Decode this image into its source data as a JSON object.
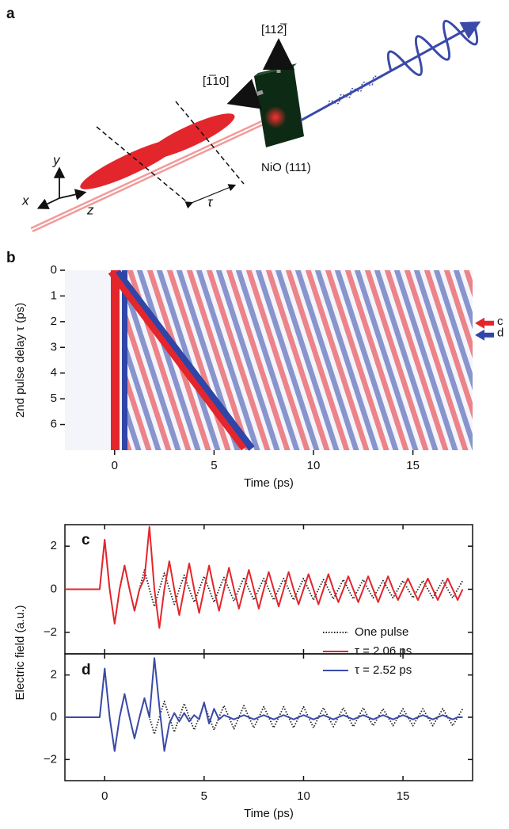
{
  "panel_labels": [
    "a",
    "b",
    "c",
    "d"
  ],
  "diagram": {
    "axis_x": "x",
    "axis_y": "y",
    "axis_z": "z",
    "delay": "τ",
    "direction_up": "[112̅]",
    "direction_side": "[1̅10]",
    "sample": "NiO (111)"
  },
  "chart_data": [
    {
      "type": "heatmap",
      "xlabel": "Time (ps)",
      "ylabel": "2nd pulse delay τ (ps)",
      "xlim": [
        -2.5,
        18
      ],
      "xticks": [
        0,
        5,
        10,
        15
      ],
      "ylim": [
        0,
        7
      ],
      "yticks": [
        0,
        1,
        2,
        3,
        4,
        5,
        6
      ],
      "y_inverted": true,
      "markers": [
        {
          "label": "c",
          "value": 2.06,
          "color": "#e3262c"
        },
        {
          "label": "d",
          "value": 2.52,
          "color": "#2f45a8"
        }
      ]
    },
    {
      "type": "line",
      "ylabel": "Electric field (a.u.)",
      "show_xtick_labels": false,
      "xlim": [
        -2,
        18.5
      ],
      "xticks": [
        0,
        5,
        10,
        15
      ],
      "ylim": [
        -3,
        3
      ],
      "yticks": [
        {
          "value": -2,
          "label": "−2"
        },
        0,
        2
      ],
      "x": [
        -2,
        -1.75,
        -1.5,
        -1.25,
        -1,
        -0.75,
        -0.5,
        -0.25,
        0,
        0.25,
        0.5,
        0.75,
        1,
        1.25,
        1.5,
        1.75,
        2,
        2.25,
        2.5,
        2.75,
        3,
        3.25,
        3.5,
        3.75,
        4,
        4.25,
        4.5,
        4.75,
        5,
        5.25,
        5.5,
        5.75,
        6,
        6.25,
        6.5,
        6.75,
        7,
        7.25,
        7.5,
        7.75,
        8,
        8.25,
        8.5,
        8.75,
        9,
        9.25,
        9.5,
        9.75,
        10,
        10.25,
        10.5,
        10.75,
        11,
        11.25,
        11.5,
        11.75,
        12,
        12.25,
        12.5,
        12.75,
        13,
        13.25,
        13.5,
        13.75,
        14,
        14.25,
        14.5,
        14.75,
        15,
        15.25,
        15.5,
        15.75,
        16,
        16.25,
        16.5,
        16.75,
        17,
        17.25,
        17.5,
        17.75,
        18
      ],
      "series": [
        {
          "name": "One pulse",
          "color": "#222222",
          "style": "dotted",
          "values": [
            0,
            0,
            0,
            0,
            0,
            0,
            0,
            0,
            2.3,
            0,
            -1.6,
            0,
            1.1,
            0,
            -1.0,
            0,
            0.9,
            0,
            -0.8,
            0,
            0.75,
            0,
            -0.7,
            0,
            0.65,
            0,
            -0.6,
            0,
            0.6,
            0,
            -0.6,
            0,
            0.55,
            0,
            -0.55,
            0,
            0.55,
            0,
            -0.5,
            0,
            0.5,
            0,
            -0.5,
            0,
            0.5,
            0,
            -0.5,
            0,
            0.5,
            0,
            -0.5,
            0,
            0.45,
            0,
            -0.45,
            0,
            0.45,
            0,
            -0.45,
            0,
            0.45,
            0,
            -0.4,
            0,
            0.4,
            0,
            -0.4,
            0,
            0.4,
            0,
            -0.4,
            0,
            0.4,
            0,
            -0.4,
            0,
            0.4,
            0,
            -0.4,
            0,
            0.4
          ]
        },
        {
          "name": "τ = 2.06 ps",
          "color": "#e3262c",
          "style": "solid",
          "values": [
            0,
            0,
            0,
            0,
            0,
            0,
            0,
            0,
            2.3,
            0,
            -1.6,
            0,
            1.1,
            0,
            -1.0,
            0,
            0.5,
            2.9,
            0,
            -1.8,
            0,
            1.3,
            0,
            -1.2,
            0,
            1.2,
            0,
            -1.1,
            0,
            1.1,
            0,
            -1.0,
            0,
            1.0,
            0,
            -0.9,
            0,
            0.9,
            0,
            -0.9,
            0,
            0.8,
            0,
            -0.8,
            0,
            0.8,
            0,
            -0.7,
            0,
            0.7,
            0,
            -0.7,
            0,
            0.7,
            0,
            -0.6,
            0,
            0.6,
            0,
            -0.6,
            0,
            0.6,
            0,
            -0.6,
            0,
            0.6,
            0,
            -0.5,
            0,
            0.5,
            0,
            -0.5,
            0,
            0.5,
            0,
            -0.5,
            0,
            0.5,
            0,
            -0.5,
            0
          ]
        }
      ]
    },
    {
      "type": "line",
      "xlabel": "Time (ps)",
      "xlim": [
        -2,
        18.5
      ],
      "xticks": [
        0,
        5,
        10,
        15
      ],
      "ylim": [
        -3,
        3
      ],
      "yticks": [
        {
          "value": -2,
          "label": "−2"
        },
        0,
        2
      ],
      "x": [
        -2,
        -1.75,
        -1.5,
        -1.25,
        -1,
        -0.75,
        -0.5,
        -0.25,
        0,
        0.25,
        0.5,
        0.75,
        1,
        1.25,
        1.5,
        1.75,
        2,
        2.25,
        2.5,
        2.75,
        3,
        3.25,
        3.5,
        3.75,
        4,
        4.25,
        4.5,
        4.75,
        5,
        5.25,
        5.5,
        5.75,
        6,
        6.25,
        6.5,
        6.75,
        7,
        7.25,
        7.5,
        7.75,
        8,
        8.25,
        8.5,
        8.75,
        9,
        9.25,
        9.5,
        9.75,
        10,
        10.25,
        10.5,
        10.75,
        11,
        11.25,
        11.5,
        11.75,
        12,
        12.25,
        12.5,
        12.75,
        13,
        13.25,
        13.5,
        13.75,
        14,
        14.25,
        14.5,
        14.75,
        15,
        15.25,
        15.5,
        15.75,
        16,
        16.25,
        16.5,
        16.75,
        17,
        17.25,
        17.5,
        17.75,
        18
      ],
      "series": [
        {
          "name": "One pulse",
          "color": "#222222",
          "style": "dotted",
          "values": [
            0,
            0,
            0,
            0,
            0,
            0,
            0,
            0,
            2.3,
            0,
            -1.6,
            0,
            1.1,
            0,
            -1.0,
            0,
            0.9,
            0,
            -0.8,
            0,
            0.75,
            0,
            -0.7,
            0,
            0.65,
            0,
            -0.6,
            0,
            0.6,
            0,
            -0.6,
            0,
            0.55,
            0,
            -0.55,
            0,
            0.55,
            0,
            -0.5,
            0,
            0.5,
            0,
            -0.5,
            0,
            0.5,
            0,
            -0.5,
            0,
            0.5,
            0,
            -0.5,
            0,
            0.45,
            0,
            -0.45,
            0,
            0.45,
            0,
            -0.45,
            0,
            0.45,
            0,
            -0.4,
            0,
            0.4,
            0,
            -0.4,
            0,
            0.4,
            0,
            -0.4,
            0,
            0.4,
            0,
            -0.4,
            0,
            0.4,
            0,
            -0.4,
            0,
            0.4
          ]
        },
        {
          "name": "τ = 2.52 ps",
          "color": "#3a4aa8",
          "style": "solid",
          "values": [
            0,
            0,
            0,
            0,
            0,
            0,
            0,
            0,
            2.3,
            0,
            -1.6,
            0,
            1.1,
            0,
            -1.0,
            0,
            0.9,
            0,
            2.8,
            0.5,
            -1.6,
            -0.3,
            0.2,
            -0.2,
            0.2,
            -0.2,
            0.1,
            -0.1,
            0.7,
            -0.3,
            0.4,
            -0.1,
            0.1,
            0,
            -0.1,
            0,
            0.1,
            0,
            -0.1,
            0,
            0.1,
            0,
            -0.1,
            0,
            0.1,
            0,
            -0.1,
            0,
            0.1,
            0,
            -0.1,
            0,
            0.1,
            0,
            -0.1,
            0,
            0.1,
            0,
            -0.1,
            0,
            0.1,
            0,
            -0.1,
            0,
            0.1,
            0,
            -0.1,
            0,
            0.1,
            0,
            -0.1,
            0,
            0.1,
            0,
            -0.1,
            0,
            0.1,
            0,
            -0.1,
            0,
            0
          ]
        }
      ]
    }
  ]
}
